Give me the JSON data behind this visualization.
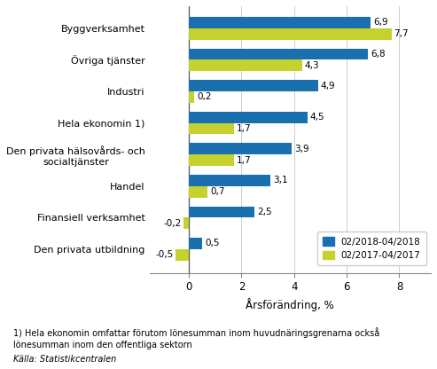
{
  "categories": [
    "Den privata utbildning",
    "Finansiell verksamhet",
    "Handel",
    "Den privata hälsovårds- och\nsocialtjänster",
    "Hela ekonomin 1)",
    "Industri",
    "Övriga tjänster",
    "Byggverksamhet"
  ],
  "series_2018": [
    0.5,
    2.5,
    3.1,
    3.9,
    4.5,
    4.9,
    6.8,
    6.9
  ],
  "series_2017": [
    -0.5,
    -0.2,
    0.7,
    1.7,
    1.7,
    0.2,
    4.3,
    7.7
  ],
  "color_2018": "#1A6FAF",
  "color_2017": "#C5D12E",
  "legend_2018": "02/2018-04/2018",
  "legend_2017": "02/2017-04/2017",
  "xlabel": "Årsförändring, %",
  "xlim": [
    -1.5,
    9.2
  ],
  "footnote1": "1) Hela ekonomin omfattar förutom lönesumman inom huvudnäringsgrenarna också",
  "footnote2": "lönesumman inom den offentliga sektorn",
  "source": "Källa: Statistikcentralen",
  "bar_height": 0.36,
  "background_color": "#ffffff"
}
